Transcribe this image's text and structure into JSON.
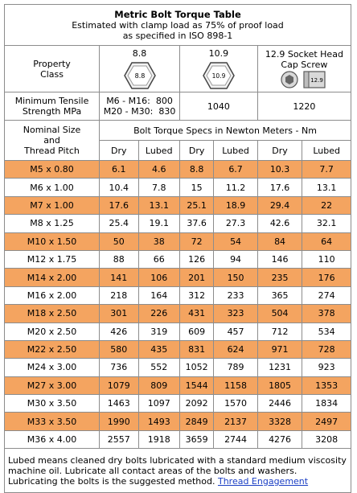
{
  "title": {
    "main": "Metric Bolt Torque Table",
    "line1": "Estimated with clamp load as 75% of proof load",
    "line2": "as specified in ISO 898-1"
  },
  "property_class": {
    "label_line1": "Property",
    "label_line2": "Class",
    "grades": [
      "8.8",
      "10.9"
    ],
    "hex_marks": [
      "8.8",
      "10.9"
    ],
    "socket_line1": "12.9 Socket Head",
    "socket_line2": "Cap Screw",
    "socket_mark": "12.9"
  },
  "tensile": {
    "label_line1": "Minimum Tensile",
    "label_line2": "Strength MPa",
    "v88_line1": "M6 - M16:  800",
    "v88_line2": "M20 - M30:  830",
    "v109": "1040",
    "v129": "1220"
  },
  "header": {
    "size_line1": "Nominal Size",
    "size_line2": "and",
    "size_line3": "Thread Pitch",
    "specs": "Bolt Torque Specs in Newton Meters - Nm",
    "cols": [
      "Dry",
      "Lubed",
      "Dry",
      "Lubed",
      "Dry",
      "Lubed"
    ]
  },
  "rows": [
    {
      "size": "M5 x 0.80",
      "v": [
        "6.1",
        "4.6",
        "8.8",
        "6.7",
        "10.3",
        "7.7"
      ]
    },
    {
      "size": "M6 x 1.00",
      "v": [
        "10.4",
        "7.8",
        "15",
        "11.2",
        "17.6",
        "13.1"
      ]
    },
    {
      "size": "M7 x 1.00",
      "v": [
        "17.6",
        "13.1",
        "25.1",
        "18.9",
        "29.4",
        "22"
      ]
    },
    {
      "size": "M8 x 1.25",
      "v": [
        "25.4",
        "19.1",
        "37.6",
        "27.3",
        "42.6",
        "32.1"
      ]
    },
    {
      "size": "M10 x 1.50",
      "v": [
        "50",
        "38",
        "72",
        "54",
        "84",
        "64"
      ]
    },
    {
      "size": "M12 x 1.75",
      "v": [
        "88",
        "66",
        "126",
        "94",
        "146",
        "110"
      ]
    },
    {
      "size": "M14 x 2.00",
      "v": [
        "141",
        "106",
        "201",
        "150",
        "235",
        "176"
      ]
    },
    {
      "size": "M16 x 2.00",
      "v": [
        "218",
        "164",
        "312",
        "233",
        "365",
        "274"
      ]
    },
    {
      "size": "M18 x 2.50",
      "v": [
        "301",
        "226",
        "431",
        "323",
        "504",
        "378"
      ]
    },
    {
      "size": "M20 x 2.50",
      "v": [
        "426",
        "319",
        "609",
        "457",
        "712",
        "534"
      ]
    },
    {
      "size": "M22 x 2.50",
      "v": [
        "580",
        "435",
        "831",
        "624",
        "971",
        "728"
      ]
    },
    {
      "size": "M24 x 3.00",
      "v": [
        "736",
        "552",
        "1052",
        "789",
        "1231",
        "923"
      ]
    },
    {
      "size": "M27 x 3.00",
      "v": [
        "1079",
        "809",
        "1544",
        "1158",
        "1805",
        "1353"
      ]
    },
    {
      "size": "M30 x 3.50",
      "v": [
        "1463",
        "1097",
        "2092",
        "1570",
        "2446",
        "1834"
      ]
    },
    {
      "size": "M33 x 3.50",
      "v": [
        "1990",
        "1493",
        "2849",
        "2137",
        "3328",
        "2497"
      ]
    },
    {
      "size": "M36 x 4.00",
      "v": [
        "2557",
        "1918",
        "3659",
        "2744",
        "4276",
        "3208"
      ]
    }
  ],
  "note": {
    "text": "Lubed means cleaned dry bolts lubricated with a standard medium viscosity machine oil. Lubricate all contact areas of the bolts and washers. Lubricating the bolts is the suggested method.",
    "link": "Thread Engagement"
  },
  "colors": {
    "highlight": "#f4a460",
    "border": "#8c8c8c",
    "link": "#1a3ec4"
  }
}
